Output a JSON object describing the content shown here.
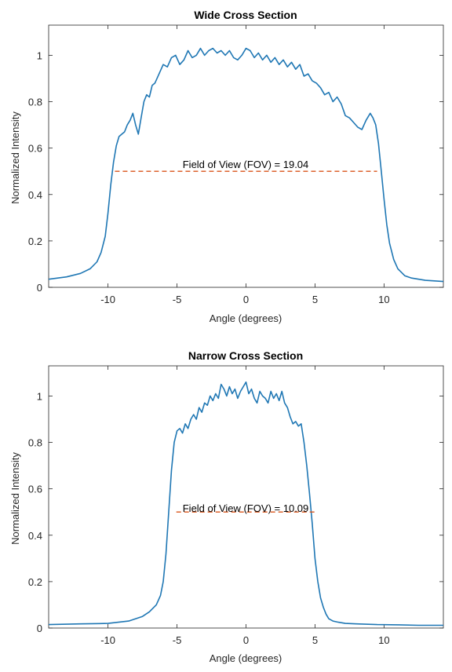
{
  "colors": {
    "series": "#1f77b4",
    "fov_line": "#d95319",
    "axes": "#262626",
    "background": "#ffffff"
  },
  "chart_data": [
    {
      "type": "line",
      "title": "Wide Cross Section",
      "xlabel": "Angle (degrees)",
      "ylabel": "Normalized Intensity",
      "xlim": [
        -14.3,
        14.3
      ],
      "ylim": [
        0,
        1.13
      ],
      "xticks": [
        -10,
        -5,
        0,
        5,
        10
      ],
      "xtick_labels": [
        "-10",
        "-5",
        "0",
        "5",
        "10"
      ],
      "yticks": [
        0,
        0.2,
        0.4,
        0.6,
        0.8,
        1
      ],
      "ytick_labels": [
        "0",
        "0.2",
        "0.4",
        "0.6",
        "0.8",
        "1"
      ],
      "grid": false,
      "fov_line": {
        "x": [
          -9.5,
          9.5
        ],
        "y": 0.5,
        "style": "dashed"
      },
      "annotation": "Field of View (FOV) = 19.04",
      "series": [
        {
          "x": [
            -14.3,
            -13.0,
            -12.0,
            -11.3,
            -10.8,
            -10.5,
            -10.2,
            -10.0,
            -9.8,
            -9.6,
            -9.4,
            -9.2,
            -9.0,
            -8.8,
            -8.6,
            -8.4,
            -8.2,
            -8.0,
            -7.8,
            -7.6,
            -7.4,
            -7.2,
            -7.0,
            -6.8,
            -6.6,
            -6.3,
            -6.0,
            -5.7,
            -5.4,
            -5.1,
            -4.8,
            -4.5,
            -4.2,
            -3.9,
            -3.6,
            -3.3,
            -3.0,
            -2.7,
            -2.4,
            -2.1,
            -1.8,
            -1.5,
            -1.2,
            -0.9,
            -0.6,
            -0.3,
            0.0,
            0.3,
            0.6,
            0.9,
            1.2,
            1.5,
            1.8,
            2.1,
            2.4,
            2.7,
            3.0,
            3.3,
            3.6,
            3.9,
            4.2,
            4.5,
            4.8,
            5.1,
            5.4,
            5.7,
            6.0,
            6.3,
            6.6,
            6.9,
            7.2,
            7.5,
            7.8,
            8.1,
            8.4,
            8.7,
            9.0,
            9.2,
            9.4,
            9.6,
            9.8,
            10.0,
            10.2,
            10.4,
            10.7,
            11.0,
            11.5,
            12.0,
            13.0,
            14.3
          ],
          "y": [
            0.035,
            0.045,
            0.06,
            0.08,
            0.11,
            0.15,
            0.22,
            0.32,
            0.44,
            0.54,
            0.61,
            0.65,
            0.66,
            0.67,
            0.7,
            0.72,
            0.75,
            0.7,
            0.66,
            0.73,
            0.8,
            0.83,
            0.82,
            0.87,
            0.88,
            0.92,
            0.96,
            0.95,
            0.99,
            1.0,
            0.96,
            0.98,
            1.02,
            0.99,
            1.0,
            1.03,
            1.0,
            1.02,
            1.03,
            1.01,
            1.02,
            1.0,
            1.02,
            0.99,
            0.98,
            1.0,
            1.03,
            1.02,
            0.99,
            1.01,
            0.98,
            1.0,
            0.97,
            0.99,
            0.96,
            0.98,
            0.95,
            0.97,
            0.94,
            0.96,
            0.91,
            0.92,
            0.89,
            0.88,
            0.86,
            0.83,
            0.84,
            0.8,
            0.82,
            0.79,
            0.74,
            0.73,
            0.71,
            0.69,
            0.68,
            0.72,
            0.75,
            0.73,
            0.7,
            0.62,
            0.5,
            0.38,
            0.27,
            0.19,
            0.12,
            0.08,
            0.05,
            0.04,
            0.03,
            0.025
          ]
        }
      ]
    },
    {
      "type": "line",
      "title": "Narrow Cross Section",
      "xlabel": "Angle (degrees)",
      "ylabel": "Normalized Intensity",
      "xlim": [
        -14.3,
        14.3
      ],
      "ylim": [
        0,
        1.13
      ],
      "xticks": [
        -10,
        -5,
        0,
        5,
        10
      ],
      "xtick_labels": [
        "-10",
        "-5",
        "0",
        "5",
        "10"
      ],
      "yticks": [
        0,
        0.2,
        0.4,
        0.6,
        0.8,
        1
      ],
      "ytick_labels": [
        "0",
        "0.2",
        "0.4",
        "0.6",
        "0.8",
        "1"
      ],
      "grid": false,
      "fov_line": {
        "x": [
          -5.05,
          5.05
        ],
        "y": 0.5,
        "style": "dashed"
      },
      "annotation": "Field of View (FOV) = 10.09",
      "series": [
        {
          "x": [
            -14.3,
            -12.0,
            -10.0,
            -8.5,
            -7.5,
            -7.0,
            -6.5,
            -6.2,
            -6.0,
            -5.8,
            -5.6,
            -5.4,
            -5.2,
            -5.0,
            -4.8,
            -4.6,
            -4.4,
            -4.2,
            -4.0,
            -3.8,
            -3.6,
            -3.4,
            -3.2,
            -3.0,
            -2.8,
            -2.6,
            -2.4,
            -2.2,
            -2.0,
            -1.8,
            -1.6,
            -1.4,
            -1.2,
            -1.0,
            -0.8,
            -0.6,
            -0.4,
            -0.2,
            0.0,
            0.2,
            0.4,
            0.6,
            0.8,
            1.0,
            1.2,
            1.4,
            1.6,
            1.8,
            2.0,
            2.2,
            2.4,
            2.6,
            2.8,
            3.0,
            3.2,
            3.4,
            3.6,
            3.8,
            4.0,
            4.2,
            4.4,
            4.6,
            4.8,
            5.0,
            5.2,
            5.4,
            5.6,
            5.8,
            6.0,
            6.3,
            6.7,
            7.2,
            8.0,
            9.5,
            11.0,
            12.5,
            14.3
          ],
          "y": [
            0.015,
            0.018,
            0.02,
            0.03,
            0.05,
            0.07,
            0.1,
            0.14,
            0.2,
            0.32,
            0.5,
            0.68,
            0.8,
            0.85,
            0.86,
            0.84,
            0.88,
            0.86,
            0.9,
            0.92,
            0.9,
            0.95,
            0.93,
            0.97,
            0.96,
            1.0,
            0.98,
            1.01,
            0.99,
            1.05,
            1.03,
            1.0,
            1.04,
            1.01,
            1.03,
            0.99,
            1.02,
            1.04,
            1.06,
            1.01,
            1.03,
            0.99,
            0.97,
            1.02,
            1.0,
            0.99,
            0.97,
            1.02,
            0.99,
            1.01,
            0.98,
            1.02,
            0.97,
            0.95,
            0.91,
            0.88,
            0.89,
            0.87,
            0.88,
            0.8,
            0.7,
            0.58,
            0.45,
            0.3,
            0.2,
            0.13,
            0.09,
            0.06,
            0.04,
            0.03,
            0.025,
            0.02,
            0.018,
            0.015,
            0.014,
            0.012,
            0.012
          ]
        }
      ]
    }
  ]
}
